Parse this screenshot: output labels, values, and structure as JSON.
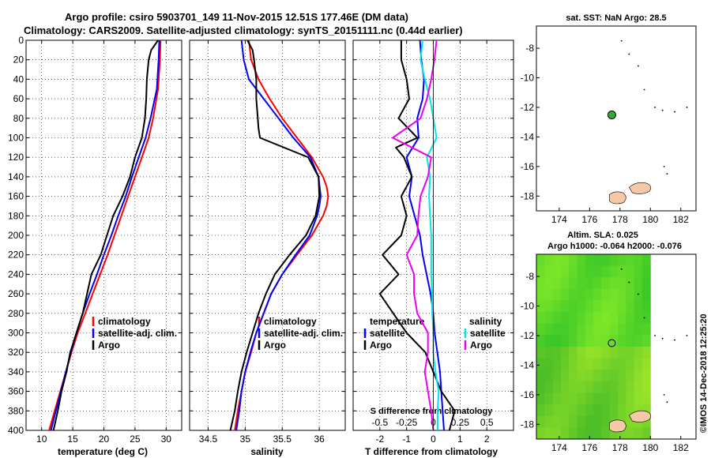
{
  "header": {
    "line1": "Argo profile: csiro 5903701_149 11-Nov-2015 12.51S 177.46E (DM data)",
    "line2": "Climatology: CARS2009. Satellite-adjusted climatology: synTS_20151111.nc (0.44d earlier)"
  },
  "colors": {
    "climatology": "#ff0000",
    "satellite": "#0000ff",
    "argo": "#000000",
    "sat_salinity": "#00e5ee",
    "argo_salinity": "#ee00ee",
    "land": "#f5c8a8",
    "sla_green": "#33cc33"
  },
  "chart_data": [
    {
      "type": "line",
      "panel": "temperature",
      "xlabel": "temperature (deg C)",
      "ylabel": "",
      "xlim": [
        7.5,
        32.5
      ],
      "ylim": [
        0,
        400
      ],
      "x_ticks": [
        "10",
        "15",
        "20",
        "25",
        "30"
      ],
      "y_ticks": [
        "0",
        "20",
        "40",
        "60",
        "80",
        "100",
        "120",
        "140",
        "160",
        "180",
        "200",
        "220",
        "240",
        "260",
        "280",
        "300",
        "320",
        "340",
        "360",
        "380",
        "400"
      ],
      "legend": [
        "climatology",
        "satellite-adj. clim.",
        "Argo"
      ],
      "series": [
        {
          "name": "climatology",
          "color": "#ff0000",
          "depth": [
            0,
            20,
            50,
            80,
            100,
            120,
            140,
            160,
            180,
            200,
            220,
            240,
            260,
            280,
            300,
            320,
            340,
            360,
            380,
            400
          ],
          "values": [
            29.1,
            29.0,
            28.7,
            27.9,
            27.2,
            26.1,
            25.0,
            23.9,
            22.8,
            21.7,
            20.6,
            19.4,
            18.2,
            17.0,
            15.8,
            14.8,
            13.9,
            13.0,
            12.1,
            11.2
          ]
        },
        {
          "name": "satellite-adj. clim.",
          "color": "#0000ff",
          "depth": [
            0,
            20,
            50,
            80,
            100,
            120,
            140,
            160,
            180,
            200,
            220,
            240,
            260,
            280,
            300,
            320,
            340,
            360,
            380,
            400
          ],
          "values": [
            28.9,
            28.8,
            28.5,
            27.5,
            26.7,
            25.6,
            24.5,
            23.5,
            22.3,
            21.2,
            20.0,
            18.9,
            17.7,
            16.6,
            15.6,
            14.7,
            13.9,
            13.1,
            12.3,
            11.5
          ]
        },
        {
          "name": "Argo",
          "color": "#000000",
          "depth": [
            0,
            10,
            20,
            40,
            60,
            80,
            100,
            120,
            140,
            160,
            180,
            200,
            220,
            240,
            260,
            280,
            300,
            320,
            340,
            360,
            380,
            400
          ],
          "values": [
            28.7,
            27.6,
            27.2,
            26.9,
            26.8,
            26.6,
            26.1,
            25.0,
            24.2,
            23.0,
            21.5,
            20.5,
            19.5,
            18.0,
            17.3,
            16.6,
            15.6,
            14.6,
            14.0,
            13.2,
            12.6,
            11.9
          ]
        }
      ]
    },
    {
      "type": "line",
      "panel": "salinity",
      "xlabel": "salinity",
      "ylabel": "",
      "xlim": [
        34.25,
        36.35
      ],
      "ylim": [
        0,
        400
      ],
      "x_ticks": [
        "34.5",
        "35",
        "35.5",
        "36"
      ],
      "legend": [
        "climatology",
        "satellite-adj. clim.",
        "Argo"
      ],
      "series": [
        {
          "name": "climatology",
          "color": "#ff0000",
          "depth": [
            0,
            20,
            40,
            60,
            80,
            100,
            120,
            140,
            150,
            160,
            170,
            180,
            200,
            220,
            240,
            260,
            280,
            300,
            320,
            340,
            360,
            380,
            400
          ],
          "values": [
            35.05,
            35.08,
            35.18,
            35.33,
            35.5,
            35.7,
            35.9,
            36.05,
            36.1,
            36.12,
            36.1,
            36.05,
            35.9,
            35.7,
            35.5,
            35.35,
            35.25,
            35.15,
            35.08,
            35.0,
            34.95,
            34.9,
            34.86
          ]
        },
        {
          "name": "satellite-adj. clim.",
          "color": "#0000ff",
          "depth": [
            0,
            20,
            40,
            60,
            80,
            100,
            120,
            140,
            160,
            170,
            180,
            200,
            220,
            240,
            260,
            280,
            300,
            320,
            340,
            360,
            380,
            400
          ],
          "values": [
            34.95,
            34.98,
            35.05,
            35.25,
            35.45,
            35.65,
            35.88,
            35.99,
            36.02,
            36.0,
            35.97,
            35.87,
            35.68,
            35.5,
            35.35,
            35.25,
            35.15,
            35.07,
            35.0,
            34.95,
            34.92,
            34.88
          ]
        },
        {
          "name": "Argo",
          "color": "#000000",
          "depth": [
            0,
            10,
            20,
            40,
            60,
            80,
            90,
            100,
            120,
            140,
            160,
            180,
            200,
            220,
            240,
            260,
            280,
            300,
            320,
            340,
            360,
            380,
            400
          ],
          "values": [
            35.03,
            35.1,
            35.12,
            35.15,
            35.15,
            35.17,
            35.18,
            35.2,
            35.85,
            35.99,
            36.0,
            35.95,
            35.82,
            35.6,
            35.4,
            35.28,
            35.18,
            35.1,
            35.02,
            34.95,
            34.9,
            34.86,
            34.8
          ]
        }
      ]
    },
    {
      "type": "line",
      "panel": "difference",
      "xlabel": "T difference from climatology",
      "ylabel": "",
      "xlim": [
        -3,
        3
      ],
      "ylim": [
        0,
        400
      ],
      "x_ticks": [
        "-2",
        "-1",
        "0",
        "1",
        "2"
      ],
      "top_label": "S difference from climatology",
      "s_ticks": [
        "-0.5",
        "-0.25",
        "0",
        "0.25",
        "0.5"
      ],
      "legend": {
        "temperature": "temperature",
        "salinity": "salinity",
        "t_satellite": "satellite",
        "t_argo": "Argo",
        "s_satellite": "satellite",
        "s_argo": "Argo"
      },
      "series": [
        {
          "name": "T satellite",
          "color": "#0000ff",
          "depth": [
            0,
            20,
            40,
            60,
            80,
            100,
            120,
            140,
            160,
            180,
            200,
            220,
            240,
            260,
            280,
            300,
            320,
            340,
            360,
            380,
            400
          ],
          "values": [
            -0.5,
            -0.45,
            -0.35,
            -0.4,
            -0.6,
            -0.55,
            -1.0,
            -0.8,
            -0.9,
            -0.7,
            -0.5,
            -0.4,
            -0.25,
            -0.1,
            0.0,
            0.05,
            0.15,
            0.25,
            0.3,
            0.35,
            0.4
          ]
        },
        {
          "name": "T Argo",
          "color": "#000000",
          "depth": [
            0,
            20,
            40,
            60,
            80,
            100,
            110,
            120,
            140,
            160,
            180,
            200,
            220,
            240,
            260,
            280,
            300,
            320,
            340,
            360,
            380,
            400
          ],
          "values": [
            -1.2,
            -1.2,
            -1.0,
            -0.9,
            -1.3,
            -0.6,
            -1.4,
            -1.1,
            -0.8,
            -1.2,
            -1.0,
            -1.2,
            -1.9,
            -1.3,
            -2.0,
            -1.5,
            -1.0,
            -0.3,
            0.0,
            0.3,
            0.8,
            0.6
          ]
        },
        {
          "name": "S satellite",
          "color": "#00e5ee",
          "depth": [
            0,
            20,
            40,
            60,
            80,
            100,
            120,
            140,
            160,
            180,
            200,
            220,
            240,
            260,
            280,
            300,
            320,
            340,
            360,
            380,
            400
          ],
          "values": [
            -0.1,
            -0.12,
            -0.08,
            -0.03,
            0.0,
            0.03,
            -0.06,
            -0.03,
            -0.04,
            -0.03,
            -0.02,
            -0.02,
            -0.02,
            -0.01,
            -0.01,
            0.0,
            0.0,
            0.02,
            0.05,
            0.04,
            0.04
          ]
        },
        {
          "name": "S Argo",
          "color": "#ee00ee",
          "depth": [
            0,
            20,
            40,
            60,
            80,
            100,
            120,
            140,
            160,
            180,
            200,
            220,
            240,
            260,
            280,
            300,
            320,
            340,
            360,
            380,
            400
          ],
          "values": [
            0.03,
            0.01,
            -0.02,
            -0.06,
            -0.12,
            -0.38,
            -0.02,
            -0.05,
            -0.12,
            -0.14,
            -0.15,
            -0.25,
            -0.18,
            -0.18,
            -0.15,
            -0.05,
            -0.05,
            -0.08,
            -0.05,
            -0.02,
            0.0
          ]
        }
      ]
    },
    {
      "type": "scatter",
      "panel": "sst-map",
      "title": "sat. SST: NaN Argo: 28.5",
      "xlim": [
        172.5,
        183
      ],
      "ylim": [
        -19,
        -6.5
      ],
      "x_ticks": [
        "174",
        "176",
        "178",
        "180",
        "182"
      ],
      "y_ticks": [
        "-8",
        "-10",
        "-12",
        "-14",
        "-16",
        "-18"
      ],
      "points": [
        {
          "lon": 177.46,
          "lat": -12.51,
          "label": "Argo float"
        }
      ]
    },
    {
      "type": "heatmap",
      "panel": "sla-map",
      "title": "Altim. SLA: 0.025",
      "subtitle": "Argo h1000: -0.064 h2000: -0.076",
      "xlim": [
        172.5,
        183
      ],
      "ylim": [
        -19,
        -6.5
      ],
      "x_ticks": [
        "174",
        "176",
        "178",
        "180",
        "182"
      ],
      "y_ticks": [
        "-8",
        "-10",
        "-12",
        "-14",
        "-16",
        "-18"
      ],
      "points": [
        {
          "lon": 177.46,
          "lat": -12.51,
          "label": "Argo float"
        }
      ]
    }
  ],
  "footer": {
    "credit": "©IMOS 14-Dec-2018 12:25:20"
  }
}
